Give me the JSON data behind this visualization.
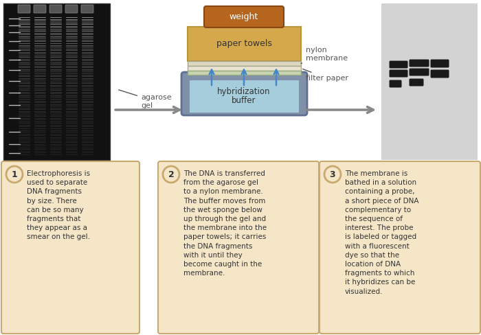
{
  "bg_color": "#ffffff",
  "gel_bg": "#111111",
  "box_bg": "#f5e6c8",
  "box_border": "#c8a96e",
  "step_circle_color": "#c8a96e",
  "weight_color": "#b5651d",
  "paper_towel_color": "#d4a84b",
  "buffer_color": "#add8e6",
  "buffer_container_color": "#7a9cb8",
  "arrow_color": "#888888",
  "membrane_bg": "#d3d3d3",
  "text_color": "#333333",
  "label_color": "#555555",
  "step1_text": "Electrophoresis is\nused to separate\nDNA fragments\nby size. There\ncan be so many\nfragments that\nthey appear as a\nsmear on the gel.",
  "step2_text": "The DNA is transferred\nfrom the agarose gel\nto a nylon membrane.\nThe buffer moves from\nthe wet sponge below\nup through the gel and\nthe membrane into the\npaper towels; it carries\nthe DNA fragments\nwith it until they\nbecome caught in the\nmembrane.",
  "step3_text": "The membrane is\nbathed in a solution\ncontaining a probe,\na short piece of DNA\ncomplementary to\nthe sequence of\ninterest. The probe\nis labeled or tagged\nwith a fluorescent\ndye so that the\nlocation of DNA\nfragments to which\nit hybridizes can be\nvisualized."
}
